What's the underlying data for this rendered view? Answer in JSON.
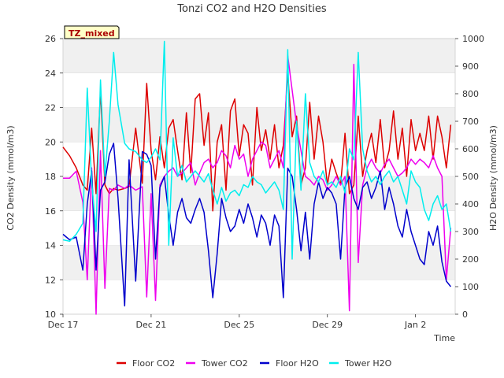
{
  "chart_data": {
    "type": "line",
    "title": "Tonzi CO2 and H2O Densities",
    "site_label": "TZ_mixed",
    "xlabel": "Time",
    "ylabel_left": "CO2 Density (mmol/m3)",
    "ylabel_right": "H2O Density (mmol/m3)",
    "x_ticks": [
      "Dec 17",
      "Dec 21",
      "Dec 25",
      "Dec 29",
      "Jan 2"
    ],
    "x_tick_days": [
      0,
      4,
      8,
      12,
      16
    ],
    "xlim_days": [
      0,
      17.8
    ],
    "ylim_left": [
      10,
      26
    ],
    "ylim_right": [
      0,
      1000
    ],
    "yticks_left": [
      "10",
      "12",
      "14",
      "16",
      "18",
      "20",
      "22",
      "24",
      "26"
    ],
    "yticks_right": [
      "0",
      "100",
      "200",
      "300",
      "400",
      "500",
      "600",
      "700",
      "800",
      "900",
      "1000"
    ],
    "grid": true,
    "legend_position": "bottom",
    "series": [
      {
        "name": "Floor CO2",
        "axis": "left",
        "color": "#dd0000",
        "x": [
          0.0,
          0.3,
          0.6,
          0.9,
          1.1,
          1.3,
          1.5,
          1.7,
          1.9,
          2.1,
          2.3,
          2.5,
          2.8,
          3.0,
          3.3,
          3.6,
          3.8,
          4.0,
          4.2,
          4.4,
          4.6,
          4.8,
          5.0,
          5.2,
          5.4,
          5.6,
          5.8,
          6.0,
          6.2,
          6.4,
          6.6,
          6.8,
          7.0,
          7.2,
          7.4,
          7.6,
          7.8,
          8.0,
          8.2,
          8.4,
          8.6,
          8.8,
          9.0,
          9.2,
          9.4,
          9.6,
          9.8,
          10.0,
          10.2,
          10.4,
          10.6,
          10.8,
          11.0,
          11.2,
          11.4,
          11.6,
          11.8,
          12.0,
          12.2,
          12.4,
          12.6,
          12.8,
          13.0,
          13.2,
          13.4,
          13.6,
          13.8,
          14.0,
          14.2,
          14.4,
          14.6,
          14.8,
          15.0,
          15.2,
          15.4,
          15.6,
          15.8,
          16.0,
          16.2,
          16.4,
          16.6,
          16.8,
          17.0,
          17.2,
          17.4,
          17.6
        ],
        "values": [
          19.7,
          19.2,
          18.5,
          17.5,
          17.2,
          20.8,
          17.0,
          23.0,
          17.5,
          17.0,
          17.3,
          17.2,
          17.3,
          17.4,
          20.8,
          17.6,
          23.4,
          19.5,
          17.8,
          20.3,
          18.5,
          20.8,
          21.3,
          19.5,
          17.8,
          21.7,
          18.2,
          22.5,
          22.8,
          19.8,
          21.7,
          16.0,
          20.0,
          21.0,
          17.2,
          21.8,
          22.5,
          19.2,
          21.0,
          20.5,
          17.5,
          22.0,
          19.5,
          20.7,
          19.0,
          21.0,
          18.5,
          19.8,
          24.0,
          20.3,
          21.5,
          17.5,
          18.5,
          22.3,
          19.0,
          21.5,
          20.0,
          17.5,
          19.0,
          18.2,
          17.5,
          20.5,
          17.0,
          17.5,
          21.5,
          18.0,
          19.5,
          20.5,
          18.8,
          21.3,
          18.5,
          19.5,
          21.8,
          19.0,
          20.8,
          18.0,
          21.3,
          19.5,
          20.5,
          19.5,
          21.5,
          19.0,
          21.5,
          20.3,
          18.5,
          21.0
        ]
      },
      {
        "name": "Tower CO2",
        "axis": "left",
        "color": "#ee00ee",
        "x": [
          0.0,
          0.3,
          0.6,
          0.9,
          1.1,
          1.3,
          1.5,
          1.7,
          1.9,
          2.1,
          2.3,
          2.5,
          2.8,
          3.0,
          3.3,
          3.6,
          3.8,
          4.0,
          4.2,
          4.4,
          4.6,
          4.8,
          5.0,
          5.2,
          5.4,
          5.6,
          5.8,
          6.0,
          6.2,
          6.4,
          6.6,
          6.8,
          7.0,
          7.2,
          7.4,
          7.6,
          7.8,
          8.0,
          8.2,
          8.4,
          8.6,
          8.8,
          9.0,
          9.2,
          9.4,
          9.6,
          9.8,
          10.0,
          10.2,
          10.4,
          10.6,
          10.8,
          11.0,
          11.2,
          11.4,
          11.6,
          11.8,
          12.0,
          12.2,
          12.4,
          12.6,
          12.8,
          13.0,
          13.2,
          13.4,
          13.6,
          13.8,
          14.0,
          14.2,
          14.4,
          14.6,
          14.8,
          15.0,
          15.2,
          15.4,
          15.6,
          15.8,
          16.0,
          16.2,
          16.4,
          16.6,
          16.8,
          17.0,
          17.2,
          17.4,
          17.6
        ],
        "values": [
          17.9,
          17.9,
          18.3,
          16.5,
          12.0,
          18.5,
          10.0,
          19.5,
          11.5,
          17.3,
          17.2,
          17.5,
          17.3,
          17.5,
          17.2,
          17.4,
          11.0,
          17.0,
          10.8,
          17.5,
          18.0,
          18.3,
          18.5,
          18.0,
          18.2,
          18.5,
          18.8,
          17.5,
          18.2,
          18.8,
          19.0,
          18.5,
          18.8,
          19.5,
          19.2,
          18.5,
          19.8,
          19.0,
          19.3,
          18.0,
          19.0,
          19.5,
          20.0,
          19.8,
          18.5,
          19.0,
          19.5,
          18.5,
          25.0,
          23.0,
          21.0,
          19.5,
          18.0,
          17.8,
          17.5,
          18.0,
          17.8,
          17.2,
          17.5,
          18.0,
          17.5,
          18.0,
          10.2,
          24.5,
          13.0,
          17.5,
          18.5,
          19.0,
          18.5,
          18.2,
          18.7,
          19.0,
          18.5,
          18.0,
          18.2,
          18.5,
          19.0,
          18.7,
          19.0,
          18.8,
          18.5,
          19.2,
          18.5,
          18.0,
          12.0,
          15.0
        ]
      },
      {
        "name": "Floor H2O",
        "axis": "right",
        "color": "#0000cc",
        "x": [
          0.0,
          0.3,
          0.6,
          0.9,
          1.1,
          1.3,
          1.5,
          1.7,
          1.9,
          2.1,
          2.3,
          2.5,
          2.8,
          3.0,
          3.3,
          3.6,
          3.8,
          4.0,
          4.2,
          4.4,
          4.6,
          4.8,
          5.0,
          5.2,
          5.4,
          5.6,
          5.8,
          6.0,
          6.2,
          6.4,
          6.6,
          6.8,
          7.0,
          7.2,
          7.4,
          7.6,
          7.8,
          8.0,
          8.2,
          8.4,
          8.6,
          8.8,
          9.0,
          9.2,
          9.4,
          9.6,
          9.8,
          10.0,
          10.2,
          10.4,
          10.6,
          10.8,
          11.0,
          11.2,
          11.4,
          11.6,
          11.8,
          12.0,
          12.2,
          12.4,
          12.6,
          12.8,
          13.0,
          13.2,
          13.4,
          13.6,
          13.8,
          14.0,
          14.2,
          14.4,
          14.6,
          14.8,
          15.0,
          15.2,
          15.4,
          15.6,
          15.8,
          16.0,
          16.2,
          16.4,
          16.6,
          16.8,
          17.0,
          17.2,
          17.4,
          17.6
        ],
        "values": [
          290,
          270,
          280,
          160,
          400,
          520,
          160,
          450,
          480,
          580,
          620,
          420,
          30,
          560,
          120,
          590,
          580,
          540,
          200,
          460,
          500,
          360,
          250,
          370,
          420,
          350,
          330,
          380,
          420,
          370,
          230,
          60,
          220,
          420,
          350,
          300,
          320,
          380,
          330,
          400,
          350,
          280,
          360,
          330,
          250,
          360,
          320,
          60,
          530,
          500,
          380,
          230,
          370,
          200,
          400,
          480,
          420,
          460,
          440,
          400,
          200,
          460,
          500,
          420,
          380,
          460,
          480,
          420,
          460,
          520,
          380,
          460,
          400,
          320,
          280,
          380,
          300,
          250,
          200,
          180,
          300,
          250,
          320,
          190,
          120,
          100
        ]
      },
      {
        "name": "Tower H2O",
        "axis": "right",
        "color": "#00eeee",
        "x": [
          0.0,
          0.3,
          0.6,
          0.9,
          1.1,
          1.3,
          1.5,
          1.7,
          1.9,
          2.1,
          2.3,
          2.5,
          2.8,
          3.0,
          3.3,
          3.6,
          3.8,
          4.0,
          4.2,
          4.4,
          4.6,
          4.8,
          5.0,
          5.2,
          5.4,
          5.6,
          5.8,
          6.0,
          6.2,
          6.4,
          6.6,
          6.8,
          7.0,
          7.2,
          7.4,
          7.6,
          7.8,
          8.0,
          8.2,
          8.4,
          8.6,
          8.8,
          9.0,
          9.2,
          9.4,
          9.6,
          9.8,
          10.0,
          10.2,
          10.4,
          10.6,
          10.8,
          11.0,
          11.2,
          11.4,
          11.6,
          11.8,
          12.0,
          12.2,
          12.4,
          12.6,
          12.8,
          13.0,
          13.2,
          13.4,
          13.6,
          13.8,
          14.0,
          14.2,
          14.4,
          14.6,
          14.8,
          15.0,
          15.2,
          15.4,
          15.6,
          15.8,
          16.0,
          16.2,
          16.4,
          16.6,
          16.8,
          17.0,
          17.2,
          17.4,
          17.6
        ],
        "values": [
          270,
          265,
          290,
          330,
          820,
          480,
          300,
          850,
          500,
          700,
          950,
          760,
          620,
          600,
          590,
          560,
          550,
          570,
          600,
          560,
          990,
          250,
          640,
          500,
          540,
          480,
          500,
          520,
          500,
          480,
          510,
          450,
          400,
          460,
          410,
          440,
          450,
          430,
          470,
          460,
          500,
          480,
          470,
          440,
          460,
          480,
          450,
          380,
          960,
          200,
          700,
          450,
          800,
          550,
          500,
          480,
          520,
          470,
          480,
          460,
          500,
          440,
          600,
          560,
          950,
          600,
          520,
          480,
          500,
          470,
          500,
          520,
          480,
          500,
          450,
          400,
          520,
          480,
          460,
          380,
          340,
          400,
          430,
          380,
          400,
          300
        ]
      }
    ]
  }
}
